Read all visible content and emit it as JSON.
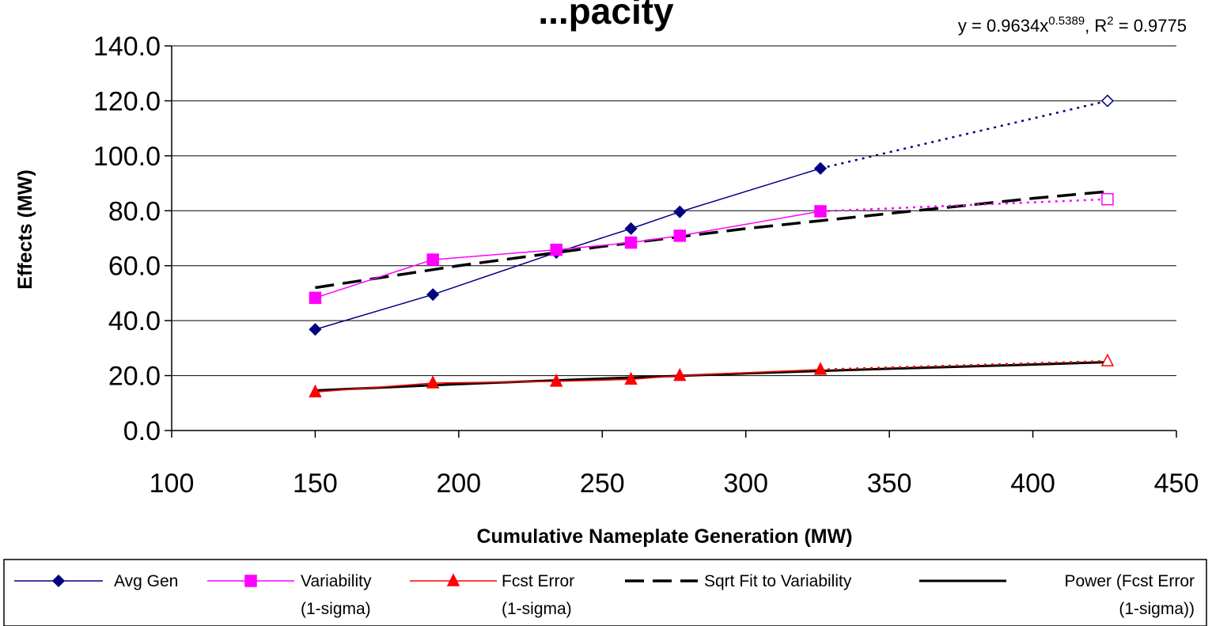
{
  "chart_data": {
    "type": "line",
    "title": "...pacity",
    "xlabel": "Cumulative Nameplate Generation (MW)",
    "ylabel": "Effects (MW)",
    "xlim": [
      100,
      450
    ],
    "ylim": [
      0,
      140
    ],
    "x_ticks": [
      "100",
      "150",
      "200",
      "250",
      "300",
      "350",
      "400",
      "450"
    ],
    "y_ticks": [
      "0.0",
      "20.0",
      "40.0",
      "60.0",
      "80.0",
      "100.0",
      "120.0",
      "140.0"
    ],
    "x_tick_values": [
      100,
      150,
      200,
      250,
      300,
      350,
      400,
      450
    ],
    "y_tick_values": [
      0,
      20,
      40,
      60,
      80,
      100,
      120,
      140
    ],
    "grid": "horizontal",
    "legend_position": "bottom",
    "annotation": {
      "base": "y = 0.9634x",
      "exponent": "0.5389",
      "middle": ", R",
      "r_exponent": "2",
      "tail": " = 0.9775"
    },
    "series": [
      {
        "name": "Avg Gen",
        "legend_line1": "Avg Gen",
        "legend_line2": "",
        "color": "#000080",
        "marker": "diamond",
        "style": "solid",
        "x": [
          150,
          191,
          234,
          260,
          277,
          326
        ],
        "y": [
          36.8,
          49.5,
          64.8,
          73.5,
          79.6,
          95.4
        ],
        "projection": {
          "x": [
            326,
            426
          ],
          "y": [
            95.4,
            120.0
          ]
        }
      },
      {
        "name": "Variability (1-sigma)",
        "legend_line1": "Variability",
        "legend_line2": "(1-sigma)",
        "color": "#ff00ff",
        "marker": "square",
        "style": "solid",
        "x": [
          150,
          191,
          234,
          260,
          277,
          326
        ],
        "y": [
          48.3,
          62.2,
          65.8,
          68.4,
          70.9,
          79.8
        ],
        "projection": {
          "x": [
            326,
            426
          ],
          "y": [
            79.8,
            84.2
          ]
        }
      },
      {
        "name": "Fcst Error (1-sigma)",
        "legend_line1": "Fcst Error",
        "legend_line2": "(1-sigma)",
        "color": "#ff0000",
        "marker": "triangle",
        "style": "solid",
        "x": [
          150,
          191,
          234,
          260,
          277,
          326
        ],
        "y": [
          14.0,
          17.3,
          17.9,
          18.6,
          20.0,
          22.2
        ],
        "projection": {
          "x": [
            326,
            426
          ],
          "y": [
            22.2,
            25.3
          ]
        }
      },
      {
        "name": "Sqrt Fit to Variability",
        "legend_line1": "Sqrt Fit to Variability",
        "legend_line2": "",
        "color": "#000000",
        "marker": "none",
        "style": "dashed",
        "x": [
          150,
          200,
          250,
          300,
          350,
          400,
          426
        ],
        "y": [
          52.0,
          60.0,
          67.0,
          73.5,
          79.0,
          84.5,
          87.0
        ]
      },
      {
        "name": "Power (Fcst Error (1-sigma))",
        "legend_line1": "Power (Fcst Error",
        "legend_line2": "(1-sigma))",
        "color": "#000000",
        "marker": "none",
        "style": "solid-thick",
        "x": [
          150,
          200,
          250,
          300,
          350,
          400,
          426
        ],
        "y": [
          14.6,
          16.9,
          18.9,
          20.8,
          22.5,
          24.0,
          24.9
        ]
      }
    ]
  }
}
